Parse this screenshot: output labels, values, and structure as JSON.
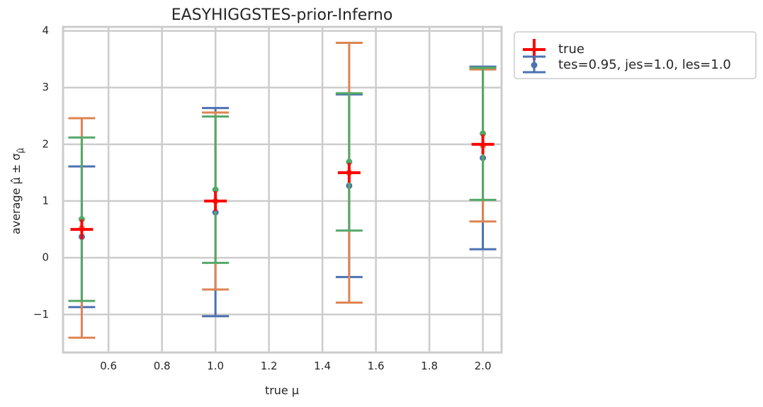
{
  "chart_data": {
    "type": "errorbar",
    "title": "EASYHIGGSTES-prior-Inferno",
    "xlabel": "true μ",
    "ylabel": "average μ̂ ± σ",
    "ylabel_subscript": "μ̂",
    "xlim": [
      0.43,
      2.07
    ],
    "ylim": [
      -1.67,
      4.07
    ],
    "xticks": [
      0.6,
      0.8,
      1.0,
      1.2,
      1.4,
      1.6,
      1.8,
      2.0
    ],
    "xtick_labels": [
      "0.6",
      "0.8",
      "1.0",
      "1.2",
      "1.4",
      "1.6",
      "1.8",
      "2.0"
    ],
    "yticks": [
      -1,
      0,
      1,
      2,
      3,
      4
    ],
    "ytick_labels": [
      "−1",
      "0",
      "1",
      "2",
      "3",
      "4"
    ],
    "grid": true,
    "true_series": {
      "name": "true",
      "color": "#ff0000",
      "x": [
        0.5,
        1.0,
        1.5,
        2.0
      ],
      "y": [
        0.5,
        1.0,
        1.5,
        2.0
      ]
    },
    "series": [
      {
        "name": "tes=0.95, jes=1.0, les=1.0",
        "color": "#4c72b0",
        "x": [
          0.5,
          1.0,
          1.5,
          2.0
        ],
        "y": [
          0.37,
          0.8,
          1.27,
          1.76
        ],
        "lower": [
          -0.87,
          -1.03,
          -0.34,
          0.15
        ],
        "upper": [
          1.61,
          2.64,
          2.88,
          3.37
        ]
      },
      {
        "name": "",
        "color": "#dd8452",
        "x": [
          0.5,
          1.0,
          1.5,
          2.0
        ],
        "y": [
          0.52,
          1.0,
          1.5,
          1.98
        ],
        "lower": [
          -1.41,
          -0.56,
          -0.79,
          0.64
        ],
        "upper": [
          2.46,
          2.56,
          3.79,
          3.32
        ]
      },
      {
        "name": "",
        "color": "#55a868",
        "x": [
          0.5,
          1.0,
          1.5,
          2.0
        ],
        "y": [
          0.68,
          1.2,
          1.69,
          2.19
        ],
        "lower": [
          -0.76,
          -0.09,
          0.48,
          1.02
        ],
        "upper": [
          2.12,
          2.49,
          2.9,
          3.35
        ]
      }
    ],
    "legend": {
      "position": "outside-top-right",
      "entries": [
        "true",
        "tes=0.95, jes=1.0, les=1.0"
      ]
    }
  }
}
